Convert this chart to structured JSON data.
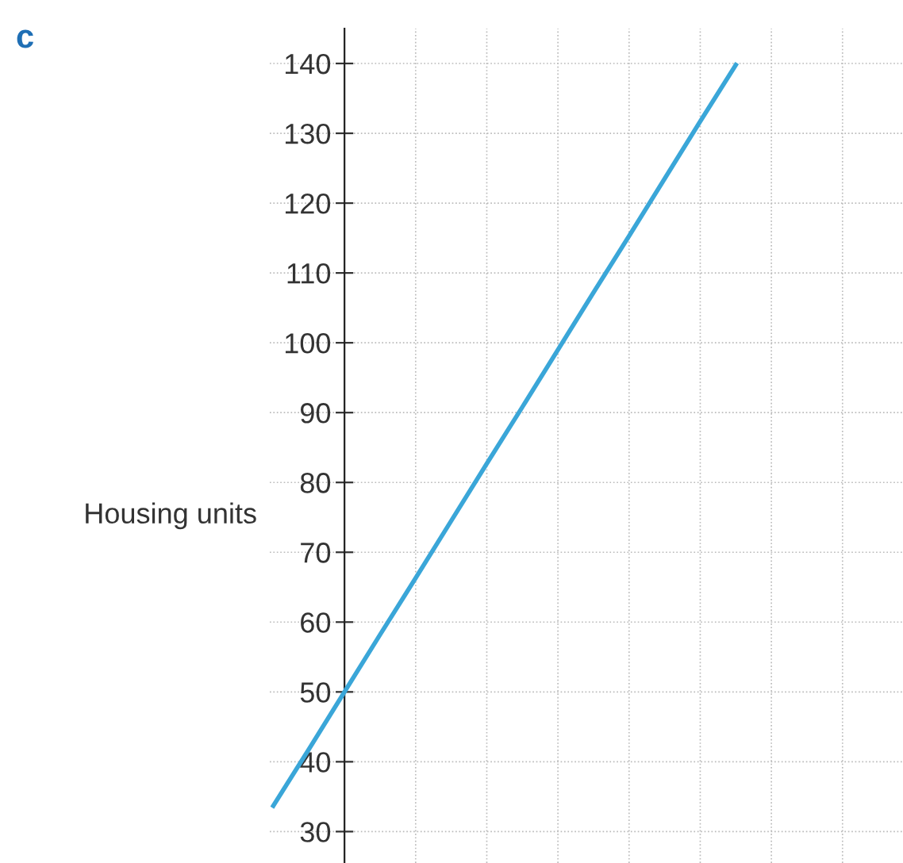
{
  "chart_data": {
    "type": "line",
    "ylabel": "Housing units",
    "annotations": [
      "c"
    ],
    "categories": [
      null,
      null,
      null,
      null,
      null,
      null,
      null,
      null,
      null,
      null,
      null,
      null,
      null,
      null
    ],
    "series": [
      {
        "color": "#3aa6d8",
        "values": [
          33.7,
          41.8,
          50,
          58.2,
          66.3,
          74.5,
          82.7,
          90.8,
          99,
          107.2,
          115.3,
          123.5,
          131.7,
          139.8
        ]
      }
    ],
    "ylim": [
      25.5,
      145
    ],
    "yticks": [
      30,
      40,
      50,
      60,
      70,
      80,
      90,
      100,
      110,
      120,
      130,
      140
    ],
    "grid": true,
    "tick_labels": "y",
    "marker": "none",
    "line_style": "solid"
  }
}
